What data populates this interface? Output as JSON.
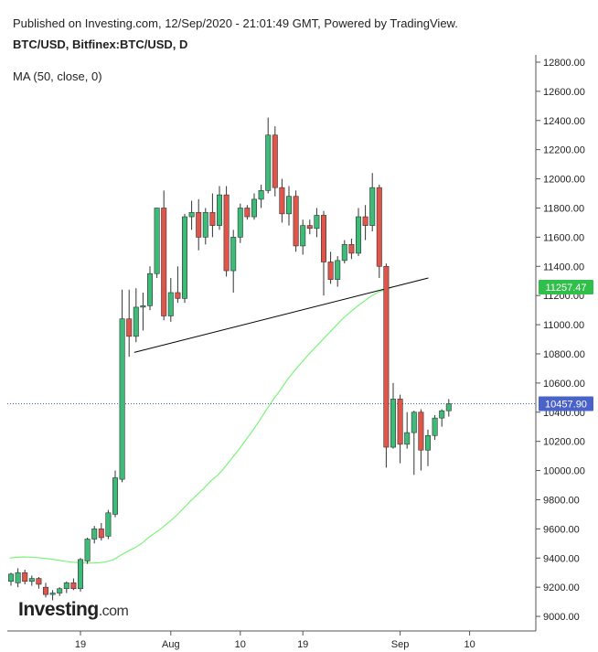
{
  "header": {
    "published": "Published on Investing.com, 12/Sep/2020 - 21:01:49 GMT, Powered by TradingView.",
    "symbol": "BTC/USD, Bitfinex:BTC/USD, D",
    "ma_legend": "MA (50, close, 0)"
  },
  "logo": {
    "main": "Investing",
    "suffix": ".com"
  },
  "chart_data": {
    "type": "candlestick",
    "title": "",
    "ylim": [
      8900,
      12850
    ],
    "y_ticks": [
      9000,
      9200,
      9400,
      9600,
      9800,
      10000,
      10200,
      10400,
      10600,
      10800,
      11000,
      11200,
      11400,
      11600,
      11800,
      12000,
      12200,
      12400,
      12600,
      12800
    ],
    "y_tick_labels": [
      "9000.00",
      "9200.00",
      "9400.00",
      "9600.00",
      "9800.00",
      "10000.00",
      "10200.00",
      "10400.00",
      "10600.00",
      "10800.00",
      "11000.00",
      "11200.00",
      "11400.00",
      "11600.00",
      "11800.00",
      "12000.00",
      "12200.00",
      "12400.00",
      "12600.00",
      "12800.00"
    ],
    "x_ticks": [
      {
        "label": "19",
        "index": 10
      },
      {
        "label": "Aug",
        "index": 23
      },
      {
        "label": "10",
        "index": 33
      },
      {
        "label": "19",
        "index": 42
      },
      {
        "label": "Sep",
        "index": 56
      },
      {
        "label": "10",
        "index": 66
      }
    ],
    "colors": {
      "up": "#3dbb78",
      "down": "#e0554a",
      "ma": "#7cf47c",
      "trendline": "#000000",
      "last_price": "#4a63c9",
      "ma_badge": "#2fbf4a"
    },
    "candles": [
      {
        "o": 9240,
        "h": 9300,
        "l": 9210,
        "c": 9290
      },
      {
        "o": 9230,
        "h": 9330,
        "l": 9200,
        "c": 9300
      },
      {
        "o": 9300,
        "h": 9320,
        "l": 9220,
        "c": 9240
      },
      {
        "o": 9240,
        "h": 9280,
        "l": 9210,
        "c": 9260
      },
      {
        "o": 9260,
        "h": 9270,
        "l": 9190,
        "c": 9220
      },
      {
        "o": 9200,
        "h": 9230,
        "l": 9130,
        "c": 9150
      },
      {
        "o": 9150,
        "h": 9180,
        "l": 9110,
        "c": 9160
      },
      {
        "o": 9160,
        "h": 9200,
        "l": 9140,
        "c": 9190
      },
      {
        "o": 9190,
        "h": 9240,
        "l": 9160,
        "c": 9230
      },
      {
        "o": 9230,
        "h": 9260,
        "l": 9180,
        "c": 9190
      },
      {
        "o": 9190,
        "h": 9400,
        "l": 9170,
        "c": 9390
      },
      {
        "o": 9380,
        "h": 9540,
        "l": 9360,
        "c": 9530
      },
      {
        "o": 9530,
        "h": 9620,
        "l": 9500,
        "c": 9600
      },
      {
        "o": 9600,
        "h": 9640,
        "l": 9520,
        "c": 9540
      },
      {
        "o": 9550,
        "h": 9730,
        "l": 9530,
        "c": 9710
      },
      {
        "o": 9700,
        "h": 10000,
        "l": 9680,
        "c": 9950
      },
      {
        "o": 9940,
        "h": 11240,
        "l": 9920,
        "c": 11040
      },
      {
        "o": 11040,
        "h": 11240,
        "l": 10780,
        "c": 10920
      },
      {
        "o": 10920,
        "h": 11250,
        "l": 10880,
        "c": 11120
      },
      {
        "o": 11120,
        "h": 11220,
        "l": 10960,
        "c": 11130
      },
      {
        "o": 11130,
        "h": 11400,
        "l": 11100,
        "c": 11350
      },
      {
        "o": 11350,
        "h": 11800,
        "l": 11320,
        "c": 11800
      },
      {
        "o": 11800,
        "h": 11920,
        "l": 11030,
        "c": 11060
      },
      {
        "o": 11060,
        "h": 11320,
        "l": 11020,
        "c": 11220
      },
      {
        "o": 11220,
        "h": 11400,
        "l": 11150,
        "c": 11180
      },
      {
        "o": 11180,
        "h": 11760,
        "l": 11150,
        "c": 11740
      },
      {
        "o": 11740,
        "h": 11850,
        "l": 11650,
        "c": 11770
      },
      {
        "o": 11770,
        "h": 11860,
        "l": 11510,
        "c": 11600
      },
      {
        "o": 11600,
        "h": 11800,
        "l": 11550,
        "c": 11770
      },
      {
        "o": 11770,
        "h": 11900,
        "l": 11600,
        "c": 11680
      },
      {
        "o": 11680,
        "h": 11950,
        "l": 11650,
        "c": 11890
      },
      {
        "o": 11890,
        "h": 11950,
        "l": 11330,
        "c": 11370
      },
      {
        "o": 11370,
        "h": 11650,
        "l": 11220,
        "c": 11600
      },
      {
        "o": 11600,
        "h": 11830,
        "l": 11560,
        "c": 11800
      },
      {
        "o": 11800,
        "h": 11820,
        "l": 11720,
        "c": 11740
      },
      {
        "o": 11740,
        "h": 11900,
        "l": 11720,
        "c": 11860
      },
      {
        "o": 11860,
        "h": 11960,
        "l": 11800,
        "c": 11920
      },
      {
        "o": 11920,
        "h": 12420,
        "l": 11900,
        "c": 12300
      },
      {
        "o": 12300,
        "h": 12360,
        "l": 11880,
        "c": 11940
      },
      {
        "o": 11940,
        "h": 12000,
        "l": 11700,
        "c": 11760
      },
      {
        "o": 11760,
        "h": 11950,
        "l": 11680,
        "c": 11880
      },
      {
        "o": 11880,
        "h": 11920,
        "l": 11500,
        "c": 11540
      },
      {
        "o": 11540,
        "h": 11720,
        "l": 11480,
        "c": 11680
      },
      {
        "o": 11680,
        "h": 11720,
        "l": 11620,
        "c": 11660
      },
      {
        "o": 11660,
        "h": 11800,
        "l": 11600,
        "c": 11750
      },
      {
        "o": 11750,
        "h": 11780,
        "l": 11200,
        "c": 11430
      },
      {
        "o": 11430,
        "h": 11500,
        "l": 11280,
        "c": 11310
      },
      {
        "o": 11310,
        "h": 11470,
        "l": 11260,
        "c": 11440
      },
      {
        "o": 11440,
        "h": 11580,
        "l": 11420,
        "c": 11550
      },
      {
        "o": 11550,
        "h": 11590,
        "l": 11450,
        "c": 11490
      },
      {
        "o": 11490,
        "h": 11800,
        "l": 11470,
        "c": 11740
      },
      {
        "o": 11740,
        "h": 11820,
        "l": 11580,
        "c": 11680
      },
      {
        "o": 11680,
        "h": 12040,
        "l": 11640,
        "c": 11940
      },
      {
        "o": 11940,
        "h": 11960,
        "l": 11320,
        "c": 11400
      },
      {
        "o": 11400,
        "h": 11420,
        "l": 10020,
        "c": 10160
      },
      {
        "o": 10160,
        "h": 10600,
        "l": 10150,
        "c": 10490
      },
      {
        "o": 10490,
        "h": 10520,
        "l": 10050,
        "c": 10180
      },
      {
        "o": 10180,
        "h": 10400,
        "l": 10150,
        "c": 10260
      },
      {
        "o": 10260,
        "h": 10410,
        "l": 9970,
        "c": 10400
      },
      {
        "o": 10400,
        "h": 10420,
        "l": 10000,
        "c": 10140
      },
      {
        "o": 10140,
        "h": 10280,
        "l": 10030,
        "c": 10240
      },
      {
        "o": 10240,
        "h": 10380,
        "l": 10210,
        "c": 10360
      },
      {
        "o": 10360,
        "h": 10420,
        "l": 10300,
        "c": 10410
      },
      {
        "o": 10410,
        "h": 10490,
        "l": 10370,
        "c": 10458
      }
    ],
    "ma50": [
      9400,
      9405,
      9408,
      9406,
      9403,
      9398,
      9392,
      9385,
      9378,
      9372,
      9368,
      9366,
      9366,
      9368,
      9375,
      9390,
      9420,
      9447,
      9470,
      9500,
      9540,
      9575,
      9610,
      9650,
      9690,
      9740,
      9790,
      9835,
      9880,
      9930,
      9970,
      10025,
      10085,
      10145,
      10210,
      10275,
      10345,
      10420,
      10490,
      10555,
      10625,
      10685,
      10740,
      10795,
      10845,
      10895,
      10945,
      10995,
      11045,
      11085,
      11125,
      11160,
      11195,
      11222,
      11240,
      11257.47
    ],
    "ma_start_index": 1,
    "trendline": {
      "from": {
        "index": 18,
        "value": 10810
      },
      "to": {
        "index": 59,
        "value": 11320
      }
    },
    "last_price": {
      "value": 10457.9,
      "label": "10457.90"
    },
    "ma_last": {
      "value": 11257.47,
      "label": "11257.47"
    }
  }
}
